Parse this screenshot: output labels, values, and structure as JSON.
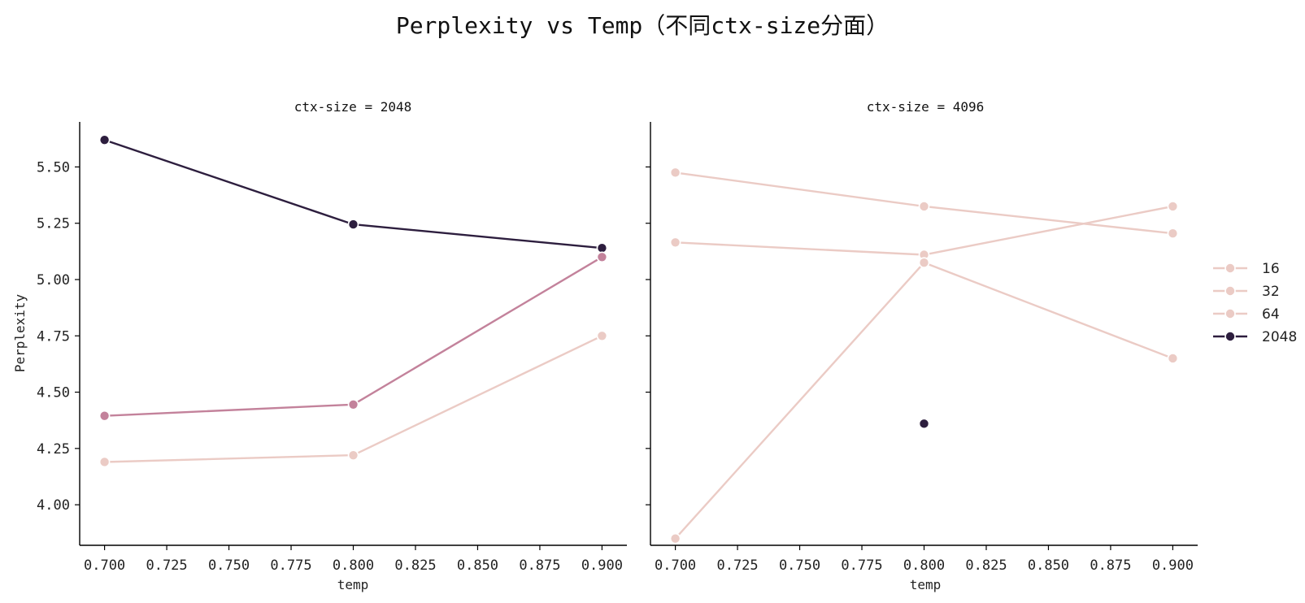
{
  "chart_data": {
    "type": "line",
    "title": "Perplexity vs Temp（不同ctx-size分面）",
    "ylabel": "Perplexity",
    "xlabel": "temp",
    "xlim": [
      0.69,
      0.91
    ],
    "ylim": [
      3.82,
      5.7
    ],
    "xticks": [
      "0.700",
      "0.725",
      "0.750",
      "0.775",
      "0.800",
      "0.825",
      "0.850",
      "0.875",
      "0.900"
    ],
    "yticks": [
      "4.00",
      "4.25",
      "4.50",
      "4.75",
      "5.00",
      "5.25",
      "5.50"
    ],
    "legend": {
      "position": "right",
      "entries": [
        {
          "label": "16",
          "color": "#ebcbc5"
        },
        {
          "label": "32",
          "color": "#ebcbc5"
        },
        {
          "label": "64",
          "color": "#ebcbc5"
        },
        {
          "label": "2048",
          "color": "#2d1e3e"
        }
      ]
    },
    "facets": [
      {
        "title": "ctx-size = 2048",
        "series": [
          {
            "color": "#2d1e3e",
            "points": [
              [
                0.7,
                5.62
              ],
              [
                0.8,
                5.245
              ],
              [
                0.9,
                5.14
              ]
            ]
          },
          {
            "color": "#c3829b",
            "points": [
              [
                0.7,
                4.395
              ],
              [
                0.8,
                4.445
              ],
              [
                0.9,
                5.1
              ]
            ]
          },
          {
            "color": "#ebcbc5",
            "points": [
              [
                0.7,
                4.19
              ],
              [
                0.8,
                4.22
              ],
              [
                0.9,
                4.75
              ]
            ]
          }
        ]
      },
      {
        "title": "ctx-size = 4096",
        "series": [
          {
            "color": "#ebcbc5",
            "points": [
              [
                0.7,
                5.475
              ],
              [
                0.8,
                5.325
              ],
              [
                0.9,
                5.205
              ]
            ]
          },
          {
            "color": "#ebcbc5",
            "points": [
              [
                0.7,
                5.165
              ],
              [
                0.8,
                5.11
              ],
              [
                0.9,
                5.325
              ]
            ]
          },
          {
            "color": "#ebcbc5",
            "points": [
              [
                0.7,
                3.85
              ],
              [
                0.8,
                5.075
              ],
              [
                0.9,
                4.65
              ]
            ]
          },
          {
            "color": "#2d1e3e",
            "points": [
              [
                0.8,
                4.36
              ]
            ]
          }
        ]
      }
    ]
  }
}
